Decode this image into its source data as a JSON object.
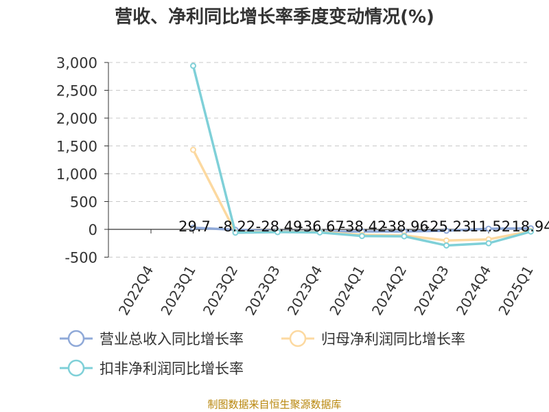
{
  "chart_data": {
    "type": "line",
    "title": "营收、净利同比增长率季度变动情况(%)",
    "categories": [
      "2022Q4",
      "2023Q1",
      "2023Q2",
      "2023Q3",
      "2023Q4",
      "2024Q1",
      "2024Q2",
      "2024Q3",
      "2024Q4",
      "2025Q1"
    ],
    "y_ticks": [
      "3,000",
      "2,500",
      "2,000",
      "1,500",
      "1,000",
      "500",
      "0",
      "-500"
    ],
    "ylim": [
      -500,
      3000
    ],
    "grid": true,
    "legend_position": "bottom",
    "series": [
      {
        "name": "营业总收入同比增长率",
        "color": "#8fa9d8",
        "values": [
          null,
          29.7,
          -8.22,
          -28.49,
          -36.67,
          -38.42,
          -38.96,
          -25.23,
          11.52,
          18.94
        ],
        "labels": [
          "",
          "29.7",
          "-8.22",
          "-28.49",
          "-36.67",
          "-38.42",
          "-38.96",
          "-25.23",
          "11.52",
          "18.94"
        ]
      },
      {
        "name": "归母净利润同比增长率",
        "color": "#fcd9a0",
        "values": [
          null,
          1430,
          -50,
          -40,
          -45,
          -100,
          -110,
          -200,
          -180,
          -30
        ]
      },
      {
        "name": "扣非净利润同比增长率",
        "color": "#7fd0d8",
        "values": [
          null,
          2940,
          -60,
          -50,
          -55,
          -120,
          -125,
          -290,
          -250,
          -40
        ]
      }
    ],
    "footer": "制图数据来自恒生聚源数据库"
  }
}
